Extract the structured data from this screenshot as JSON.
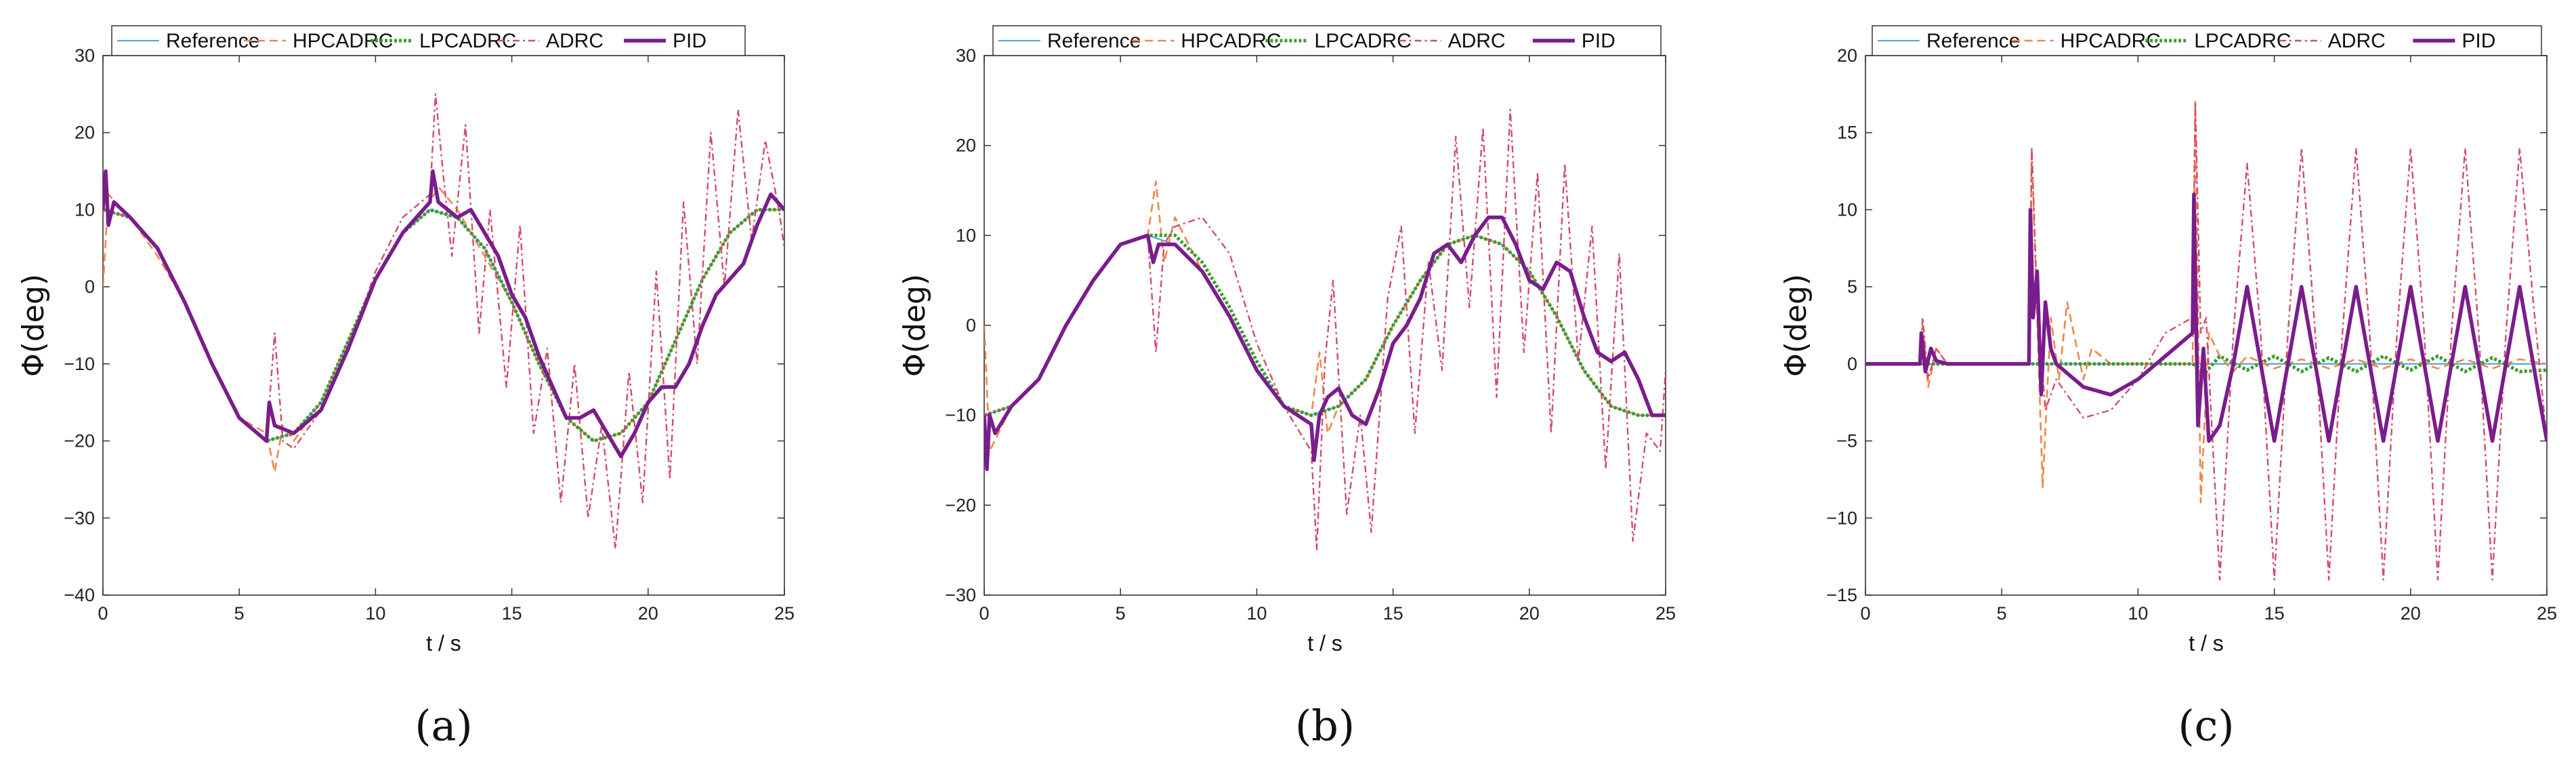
{
  "colors": {
    "Reference": "#5aa6dc",
    "HPCADRC": "#f2854b",
    "LPCADRC": "#3a9a2a",
    "ADRC": "#d24d6a",
    "PID": "#7a1d8c"
  },
  "chart_data": [
    {
      "type": "line",
      "panel_label": "(a)",
      "xlabel": "t / s",
      "ylabel": "Φ(deg)",
      "xlim": [
        0,
        25
      ],
      "ylim": [
        -40,
        30
      ],
      "xticks": [
        0,
        5,
        10,
        15,
        20,
        25
      ],
      "yticks": [
        -40,
        -30,
        -20,
        -10,
        0,
        10,
        20,
        30
      ],
      "legend": [
        "Reference",
        "HPCADRC",
        "LPCADRC",
        "ADRC",
        "PID"
      ],
      "legend_position": "top",
      "grid": false,
      "series": [
        {
          "name": "Reference",
          "x": [
            0,
            1,
            2,
            3,
            4,
            5,
            6,
            7,
            8,
            9,
            10,
            11,
            12,
            13,
            14,
            15,
            16,
            17,
            18,
            19,
            20,
            21,
            22,
            23,
            24,
            25
          ],
          "values": [
            10,
            9,
            5,
            -2,
            -10,
            -17,
            -20,
            -19,
            -15,
            -7,
            1,
            7,
            10,
            9,
            5,
            -2,
            -10,
            -17,
            -20,
            -19,
            -15,
            -7,
            1,
            7,
            10,
            10
          ]
        },
        {
          "name": "HPCADRC",
          "x": [
            0,
            0.2,
            1,
            2,
            3,
            4,
            5,
            6,
            6.3,
            6.6,
            7,
            8,
            9,
            10,
            11,
            12,
            12.3,
            13,
            14,
            15,
            16,
            17,
            18,
            19,
            20,
            21,
            22,
            23,
            24,
            25
          ],
          "values": [
            0,
            12,
            9,
            4,
            -2,
            -10,
            -17,
            -19,
            -24,
            -18,
            -20,
            -15,
            -7,
            1,
            7,
            11,
            13,
            10,
            4,
            -2,
            -10,
            -17,
            -20,
            -19,
            -15,
            -7,
            1,
            7,
            10,
            10
          ]
        },
        {
          "name": "LPCADRC",
          "x": [
            0,
            1,
            2,
            3,
            4,
            5,
            6,
            7,
            8,
            9,
            10,
            11,
            12,
            13,
            14,
            15,
            16,
            17,
            18,
            19,
            20,
            21,
            22,
            23,
            24,
            25
          ],
          "values": [
            10,
            9,
            5,
            -2,
            -10,
            -17,
            -20,
            -19,
            -15,
            -7,
            1,
            7,
            10,
            9,
            5,
            -2,
            -10,
            -17,
            -20,
            -19,
            -15,
            -7,
            1,
            7,
            10,
            10
          ]
        },
        {
          "name": "ADRC",
          "x": [
            0,
            1,
            2,
            3,
            4,
            5,
            6,
            6.3,
            6.6,
            7,
            8,
            9,
            10,
            11,
            12,
            12.2,
            12.5,
            12.8,
            13.3,
            13.8,
            14.2,
            14.8,
            15.3,
            15.8,
            16.3,
            16.8,
            17.3,
            17.8,
            18.3,
            18.8,
            19.3,
            19.8,
            20.3,
            20.8,
            21.3,
            21.8,
            22.3,
            22.8,
            23.3,
            23.8,
            24.3,
            24.8,
            25
          ],
          "values": [
            10,
            9,
            5,
            -2,
            -10,
            -17,
            -20,
            -6,
            -20,
            -21,
            -16,
            -8,
            2,
            9,
            12,
            25,
            14,
            4,
            21,
            -6,
            10,
            -13,
            8,
            -19,
            -8,
            -28,
            -10,
            -30,
            -18,
            -34,
            -11,
            -28,
            2,
            -25,
            11,
            -10,
            20,
            0,
            23,
            6,
            19,
            10,
            5
          ]
        },
        {
          "name": "PID",
          "x": [
            0,
            0.1,
            0.2,
            0.4,
            1,
            2,
            3,
            4,
            5,
            6,
            6.1,
            6.3,
            7,
            8,
            9,
            10,
            11,
            12,
            12.1,
            12.3,
            13,
            13.5,
            14,
            14.5,
            15,
            15.5,
            16,
            16.5,
            17,
            17.5,
            18,
            18.5,
            19,
            19.5,
            20,
            20.5,
            21,
            21.5,
            22,
            22.5,
            23,
            23.5,
            24,
            24.5,
            25
          ],
          "values": [
            10,
            15,
            8,
            11,
            9,
            5,
            -2,
            -10,
            -17,
            -20,
            -15,
            -18,
            -19,
            -16,
            -8,
            1,
            7,
            11,
            15,
            11,
            9,
            10,
            7,
            4,
            -1,
            -4,
            -9,
            -13,
            -17,
            -17,
            -16,
            -19,
            -22,
            -19,
            -15,
            -13,
            -13,
            -10,
            -5,
            -1,
            1,
            3,
            8,
            12,
            10
          ]
        }
      ]
    },
    {
      "type": "line",
      "panel_label": "(b)",
      "xlabel": "t / s",
      "ylabel": "Φ(deg)",
      "xlim": [
        0,
        25
      ],
      "ylim": [
        -30,
        30
      ],
      "xticks": [
        0,
        5,
        10,
        15,
        20,
        25
      ],
      "yticks": [
        -30,
        -20,
        -10,
        0,
        10,
        20,
        30
      ],
      "legend": [
        "Reference",
        "HPCADRC",
        "LPCADRC",
        "ADRC",
        "PID"
      ],
      "legend_position": "top",
      "grid": false,
      "series": [
        {
          "name": "Reference",
          "x": [
            0,
            1,
            2,
            3,
            4,
            5,
            6,
            7,
            8,
            9,
            10,
            11,
            12,
            13,
            14,
            15,
            16,
            17,
            18,
            19,
            20,
            21,
            22,
            23,
            24,
            25
          ],
          "values": [
            -10,
            -9,
            -6,
            0,
            5,
            9,
            10,
            9,
            6,
            1,
            -5,
            -9,
            -10,
            -9,
            -6,
            0,
            5,
            9,
            10,
            9,
            6,
            1,
            -5,
            -9,
            -10,
            -10
          ]
        },
        {
          "name": "HPCADRC",
          "x": [
            0,
            0.2,
            1,
            2,
            3,
            4,
            5,
            6,
            6.3,
            6.6,
            7,
            8,
            9,
            10,
            11,
            12,
            12.3,
            12.6,
            13,
            14,
            15,
            16,
            17,
            18,
            19,
            20,
            21,
            22,
            23,
            24,
            25
          ],
          "values": [
            0,
            -14,
            -9,
            -6,
            0,
            5,
            9,
            10,
            16,
            7,
            12,
            6,
            1,
            -5,
            -9,
            -10,
            -3,
            -12,
            -9,
            -6,
            0,
            5,
            9,
            10,
            9,
            6,
            1,
            -5,
            -9,
            -10,
            -10
          ]
        },
        {
          "name": "LPCADRC",
          "x": [
            0,
            1,
            2,
            3,
            4,
            5,
            6,
            7,
            8,
            9,
            10,
            11,
            12,
            13,
            14,
            15,
            16,
            17,
            18,
            19,
            20,
            21,
            22,
            23,
            24,
            25
          ],
          "values": [
            -10,
            -9,
            -6,
            0,
            5,
            9,
            10,
            10,
            7,
            2,
            -4,
            -9,
            -10,
            -9,
            -6,
            0,
            5,
            9,
            10,
            9,
            6,
            1,
            -5,
            -9,
            -10,
            -10
          ]
        },
        {
          "name": "ADRC",
          "x": [
            0,
            1,
            2,
            3,
            4,
            5,
            6,
            6.3,
            6.6,
            7,
            8,
            9,
            10,
            11,
            12,
            12.2,
            12.5,
            12.8,
            13.3,
            13.8,
            14.2,
            14.8,
            15.3,
            15.8,
            16.3,
            16.8,
            17.3,
            17.8,
            18.3,
            18.8,
            19.3,
            19.8,
            20.3,
            20.8,
            21.3,
            21.8,
            22.3,
            22.8,
            23.3,
            23.8,
            24.3,
            24.8,
            25
          ],
          "values": [
            -10,
            -9,
            -6,
            0,
            5,
            9,
            10,
            -3,
            9,
            11,
            12,
            8,
            -2,
            -9,
            -14,
            -25,
            -4,
            5,
            -21,
            -10,
            -23,
            3,
            11,
            -12,
            7,
            -5,
            21,
            2,
            22,
            -8,
            24,
            -3,
            17,
            -12,
            18,
            -4,
            11,
            -16,
            8,
            -24,
            -12,
            -14,
            -5
          ]
        },
        {
          "name": "PID",
          "x": [
            0,
            0.1,
            0.2,
            0.4,
            1,
            2,
            3,
            4,
            5,
            6,
            6.2,
            6.4,
            7,
            8,
            9,
            10,
            11,
            12,
            12.1,
            12.3,
            12.6,
            13,
            13.5,
            14,
            14.5,
            15,
            15.5,
            16,
            16.5,
            17,
            17.5,
            18,
            18.5,
            19,
            19.5,
            20,
            20.5,
            21,
            21.5,
            22,
            22.5,
            23,
            23.5,
            24,
            24.5,
            25
          ],
          "values": [
            -10,
            -16,
            -10,
            -12,
            -9,
            -6,
            0,
            5,
            9,
            10,
            7,
            9,
            9,
            6,
            1,
            -5,
            -9,
            -11,
            -15,
            -10,
            -8,
            -7,
            -10,
            -11,
            -7,
            -2,
            0,
            3,
            8,
            9,
            7,
            10,
            12,
            12,
            9,
            5,
            4,
            7,
            6,
            1,
            -3,
            -4,
            -3,
            -6,
            -10,
            -10
          ]
        }
      ]
    },
    {
      "type": "line",
      "panel_label": "(c)",
      "xlabel": "t / s",
      "ylabel": "Φ(deg)",
      "xlim": [
        0,
        25
      ],
      "ylim": [
        -15,
        20
      ],
      "xticks": [
        0,
        5,
        10,
        15,
        20,
        25
      ],
      "yticks": [
        -15,
        -10,
        -5,
        0,
        5,
        10,
        15,
        20
      ],
      "legend": [
        "Reference",
        "HPCADRC",
        "LPCADRC",
        "ADRC",
        "PID"
      ],
      "legend_position": "top",
      "grid": false,
      "series": [
        {
          "name": "Reference",
          "x": [
            0,
            25
          ],
          "values": [
            0,
            0
          ]
        },
        {
          "name": "HPCADRC",
          "x": [
            0,
            2,
            2.1,
            2.3,
            2.6,
            3,
            6,
            6.1,
            6.3,
            6.5,
            6.8,
            7.1,
            7.4,
            8,
            8.3,
            9,
            12,
            12.1,
            12.3,
            12.6,
            13,
            13.5,
            14,
            15,
            16,
            17,
            18,
            19,
            20,
            21,
            22,
            23,
            24,
            25
          ],
          "values": [
            0,
            0,
            2.5,
            -1.5,
            1,
            0,
            0,
            14,
            3,
            -8,
            3,
            -1,
            4,
            -1,
            1,
            0,
            0,
            17,
            -9,
            2,
            0.5,
            -0.5,
            0.5,
            -0.3,
            0.3,
            -0.3,
            0.3,
            -0.3,
            0.3,
            -0.3,
            0.3,
            -0.3,
            0.3,
            0
          ]
        },
        {
          "name": "LPCADRC",
          "x": [
            0,
            12,
            12.5,
            13,
            14,
            15,
            16,
            17,
            18,
            19,
            20,
            21,
            22,
            23,
            24,
            25
          ],
          "values": [
            0,
            0,
            -0.5,
            0.5,
            -0.4,
            0.5,
            -0.5,
            0.4,
            -0.5,
            0.5,
            -0.4,
            0.5,
            -0.5,
            0.4,
            -0.5,
            -0.4
          ]
        },
        {
          "name": "ADRC",
          "x": [
            0,
            2,
            2.1,
            2.3,
            2.6,
            3,
            6,
            6.1,
            6.3,
            6.6,
            7,
            8,
            9,
            10,
            11,
            12,
            12.1,
            12.3,
            12.5,
            13,
            13.5,
            14,
            14.5,
            15,
            15.5,
            16,
            16.5,
            17,
            17.5,
            18,
            18.5,
            19,
            19.5,
            20,
            20.5,
            21,
            21.5,
            22,
            22.5,
            23,
            23.5,
            24,
            24.5,
            25
          ],
          "values": [
            0,
            0,
            3,
            -1,
            1,
            0,
            0,
            14,
            4,
            -3,
            -1,
            -3.5,
            -3,
            -1,
            2,
            3,
            17,
            2,
            3,
            -14,
            2,
            13,
            2,
            -14,
            2,
            14,
            2,
            -14,
            2,
            14,
            2,
            -14,
            2,
            14,
            2,
            -14,
            2,
            14,
            2,
            -14,
            2,
            14,
            4,
            -5
          ]
        },
        {
          "name": "PID",
          "x": [
            0,
            2,
            2.05,
            2.2,
            2.4,
            2.6,
            3,
            6,
            6.05,
            6.15,
            6.3,
            6.45,
            6.6,
            6.8,
            7,
            8,
            9,
            10,
            11,
            12,
            12.05,
            12.2,
            12.4,
            12.6,
            13,
            13.5,
            14,
            14.5,
            15,
            15.5,
            16,
            16.5,
            17,
            17.5,
            18,
            18.5,
            19,
            19.5,
            20,
            20.5,
            21,
            21.5,
            22,
            22.5,
            23,
            23.5,
            24,
            24.5,
            25
          ],
          "values": [
            0,
            0,
            2,
            -0.5,
            1,
            0.2,
            0,
            0,
            10,
            3,
            6,
            -2,
            4,
            1,
            0,
            -1.5,
            -2,
            -1,
            0.5,
            2,
            11,
            -4,
            1,
            -5,
            -4,
            0,
            5,
            0,
            -5,
            0,
            5,
            0,
            -5,
            0,
            5,
            0,
            -5,
            0,
            5,
            0,
            -5,
            0,
            5,
            0,
            -5,
            0,
            5,
            0,
            -5
          ]
        }
      ]
    }
  ]
}
